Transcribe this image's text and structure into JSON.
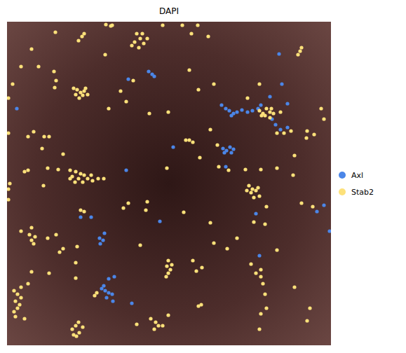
{
  "chart_data": {
    "type": "scatter",
    "title": "DAPI",
    "xlim": [
      10,
      472
    ],
    "ylim": [
      493,
      31
    ],
    "tick_labels": false,
    "grid": false,
    "legend": "right",
    "marker": "circle",
    "series": [
      {
        "name": "Axl",
        "color": "#4b86e8",
        "x": [
          212,
          217,
          220,
          183,
          398,
          24,
          316,
          322,
          327,
          333,
          338,
          345,
          353,
          360,
          368,
          330,
          385,
          372,
          388,
          393,
          400,
          410,
          402,
          318,
          323,
          328,
          333,
          320,
          330,
          322,
          247,
          180,
          115,
          130,
          142,
          147,
          143,
          149,
          228,
          365,
          452,
          462,
          470,
          370,
          155,
          163,
          145,
          150,
          155,
          160,
          152,
          148,
          161,
          188,
          410
        ],
        "y": [
          102,
          106,
          109,
          113,
          77,
          155,
          150,
          155,
          158,
          162,
          160,
          157,
          160,
          158,
          155,
          165,
          138,
          150,
          170,
          178,
          185,
          182,
          120,
          212,
          215,
          210,
          213,
          218,
          218,
          238,
          210,
          243,
          310,
          310,
          340,
          343,
          348,
          333,
          316,
          305,
          302,
          293,
          330,
          365,
          398,
          395,
          412,
          415,
          418,
          420,
          425,
          408,
          430,
          433,
          148
        ]
      },
      {
        "name": "Stab2",
        "color": "#fde17a",
        "x": [
          120,
          117,
          112,
          151,
          195,
          200,
          192,
          205,
          198,
          188,
          210,
          203,
          45,
          79,
          160,
          232,
          260,
          282,
          273,
          297,
          430,
          425,
          428,
          30,
          77,
          80,
          78,
          150,
          172,
          180,
          155,
          110,
          115,
          120,
          108,
          118,
          113,
          122,
          105,
          125,
          240,
          213,
          270,
          305,
          353,
          370,
          283,
          190,
          370,
          375,
          380,
          385,
          378,
          385,
          390,
          373,
          387,
          400,
          395,
          405,
          415,
          438,
          462,
          458,
          12,
          12,
          40,
          63,
          70,
          60,
          90,
          265,
          270,
          275,
          310,
          300,
          420,
          418,
          437,
          448,
          100,
          108,
          115,
          103,
          112,
          120,
          125,
          130,
          140,
          148,
          118,
          132,
          107,
          100,
          35,
          40,
          68,
          83,
          238,
          285,
          312,
          326,
          350,
          372,
          395,
          355,
          360,
          365,
          368,
          358,
          370,
          362,
          352,
          12,
          14,
          12,
          62,
          115,
          120,
          183,
          176,
          210,
          208,
          262,
          300,
          362,
          378,
          380,
          430,
          446,
          30,
          42,
          50,
          45,
          48,
          45,
          80,
          68,
          90,
          85,
          110,
          108,
          200,
          305,
          275,
          288,
          338,
          324,
          358,
          395,
          372,
          365,
          372,
          240,
          245,
          238,
          243,
          240,
          237,
          40,
          45,
          70,
          280,
          287,
          283,
          20,
          25,
          30,
          22,
          28,
          25,
          20,
          30,
          22,
          35,
          108,
          138,
          135,
          112,
          108,
          103,
          113,
          109,
          105,
          118,
          195,
          215,
          222,
          226,
          220,
          232,
          240,
          375,
          378,
          380,
          372,
          420,
          442,
          438,
          370,
          158,
          55,
          18,
          48
        ],
        "y": [
          48,
          52,
          58,
          35,
          48,
          55,
          60,
          62,
          68,
          65,
          55,
          48,
          70,
          46,
          36,
          36,
          36,
          36,
          48,
          52,
          68,
          78,
          73,
          95,
          102,
          115,
          125,
          78,
          130,
          145,
          155,
          128,
          132,
          130,
          135,
          136,
          140,
          126,
          126,
          135,
          160,
          162,
          100,
          120,
          140,
          120,
          128,
          115,
          158,
          162,
          155,
          160,
          165,
          168,
          162,
          165,
          155,
          160,
          190,
          190,
          187,
          187,
          170,
          155,
          140,
          190,
          195,
          195,
          195,
          212,
          220,
          200,
          200,
          203,
          207,
          185,
          222,
          250,
          197,
          192,
          243,
          245,
          248,
          252,
          255,
          250,
          255,
          250,
          255,
          255,
          260,
          258,
          260,
          255,
          245,
          243,
          240,
          242,
          240,
          225,
          238,
          243,
          242,
          242,
          240,
          265,
          270,
          272,
          268,
          275,
          280,
          282,
          272,
          270,
          262,
          285,
          265,
          300,
          302,
          290,
          297,
          288,
          300,
          303,
          318,
          317,
          320,
          295,
          290,
          295,
          330,
          335,
          338,
          343,
          348,
          325,
          335,
          340,
          355,
          360,
          352,
          375,
          350,
          347,
          372,
          382,
          340,
          355,
          377,
          357,
          385,
          390,
          395,
          372,
          378,
          380,
          385,
          390,
          395,
          405,
          388,
          390,
          387,
          435,
          437,
          415,
          420,
          425,
          430,
          435,
          440,
          445,
          410,
          452,
          455,
          397,
          418,
          422,
          460,
          465,
          470,
          475,
          480,
          478,
          467,
          463,
          455,
          460,
          465,
          470,
          465,
          450,
          405,
          420,
          440,
          448,
          410,
          440,
          458,
          470,
          37,
          95,
          120,
          188
        ]
      }
    ]
  }
}
